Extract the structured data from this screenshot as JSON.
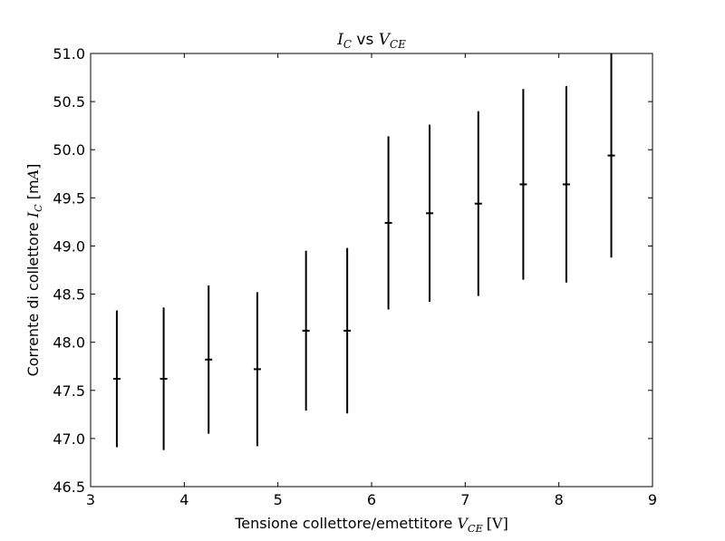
{
  "chart_data": {
    "type": "scatter",
    "title": {
      "pre": "I",
      "pre_sub": "C",
      "mid": " vs ",
      "post": "V",
      "post_sub": "CE"
    },
    "xlabel": {
      "text": "Tensione collettore/emettitore ",
      "sym": "V",
      "sym_sub": "CE",
      "unit": "[V]"
    },
    "ylabel": {
      "text": "Corrente di collettore ",
      "sym": "I",
      "sym_sub": "C",
      "unit_open": " [m",
      "unit_sym": "A",
      "unit_close": "]"
    },
    "xlim": [
      3,
      9
    ],
    "ylim": [
      46.5,
      51.0
    ],
    "x_ticks": [
      "3",
      "4",
      "5",
      "6",
      "7",
      "8",
      "9"
    ],
    "y_ticks": [
      "46.5",
      "47.0",
      "47.5",
      "48.0",
      "48.5",
      "49.0",
      "49.5",
      "50.0",
      "50.5",
      "51.0"
    ],
    "grid": false,
    "points": [
      {
        "x": 3.28,
        "y": 47.62,
        "yerr": 0.71
      },
      {
        "x": 3.78,
        "y": 47.62,
        "yerr": 0.74
      },
      {
        "x": 4.26,
        "y": 47.82,
        "yerr": 0.77
      },
      {
        "x": 4.78,
        "y": 47.72,
        "yerr": 0.8
      },
      {
        "x": 5.3,
        "y": 48.12,
        "yerr": 0.83
      },
      {
        "x": 5.74,
        "y": 48.12,
        "yerr": 0.86
      },
      {
        "x": 6.18,
        "y": 49.24,
        "yerr": 0.9
      },
      {
        "x": 6.62,
        "y": 49.34,
        "yerr": 0.92
      },
      {
        "x": 7.14,
        "y": 49.44,
        "yerr": 0.96
      },
      {
        "x": 7.62,
        "y": 49.64,
        "yerr": 0.99
      },
      {
        "x": 8.08,
        "y": 49.64,
        "yerr": 1.02
      },
      {
        "x": 8.56,
        "y": 49.94,
        "yerr": 1.06
      }
    ]
  }
}
